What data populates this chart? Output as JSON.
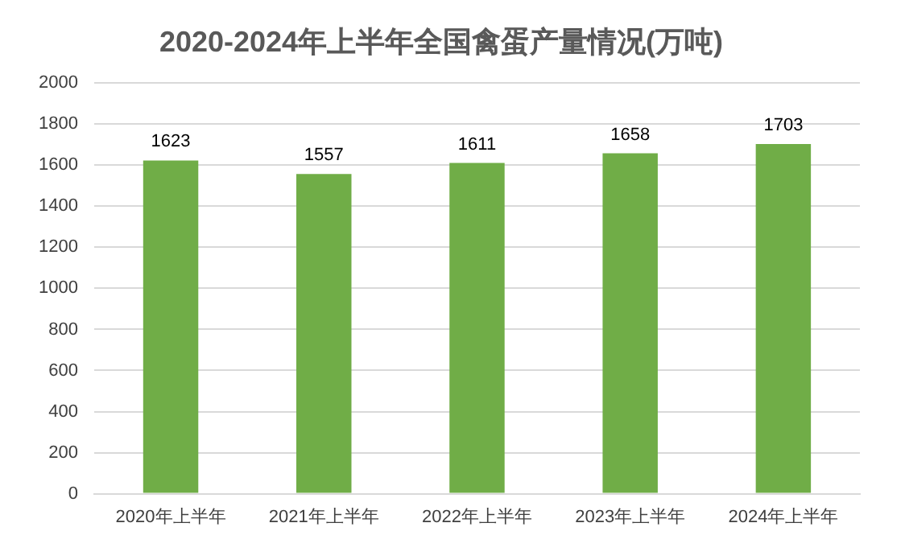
{
  "chart_data": {
    "type": "bar",
    "title": "2020-2024年上半年全国禽蛋产量情况(万吨)",
    "categories": [
      "2020年上半年",
      "2021年上半年",
      "2022年上半年",
      "2023年上半年",
      "2024年上半年"
    ],
    "values": [
      1623,
      1557,
      1611,
      1658,
      1703
    ],
    "color": "#70ad47",
    "ylim": [
      0,
      2000
    ],
    "yticks": [
      0,
      200,
      400,
      600,
      800,
      1000,
      1200,
      1400,
      1600,
      1800,
      2000
    ],
    "grid": "y",
    "data_labels": true
  }
}
